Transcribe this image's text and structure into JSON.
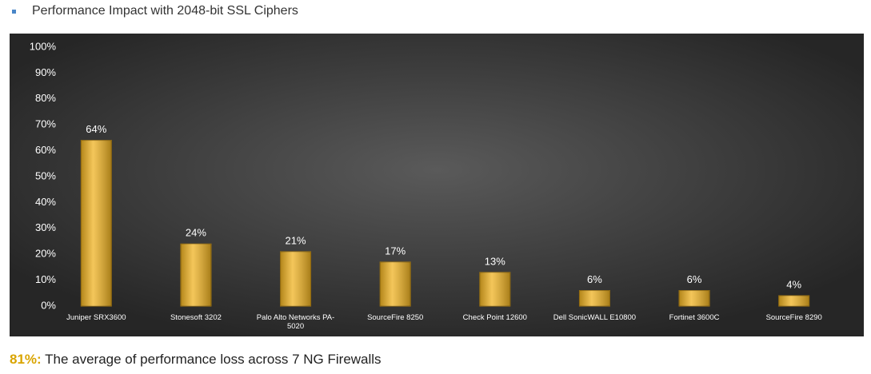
{
  "header": {
    "text": "Performance Impact with 2048-bit SSL Ciphers"
  },
  "chart_data": {
    "type": "bar",
    "categories": [
      "Juniper SRX3600",
      "Stonesoft 3202",
      "Palo Alto Networks PA-5020",
      "SourceFire 8250",
      "Check Point 12600",
      "Dell SonicWALL E10800",
      "Fortinet 3600C",
      "SourceFire 8290"
    ],
    "values": [
      64,
      24,
      21,
      17,
      13,
      6,
      6,
      4
    ],
    "value_labels": [
      "64%",
      "24%",
      "21%",
      "17%",
      "13%",
      "6%",
      "6%",
      "4%"
    ],
    "color": "#f0b323",
    "ylim": [
      0,
      100
    ],
    "yticks": [
      {
        "value": 0,
        "label": "0%"
      },
      {
        "value": 10,
        "label": "10%"
      },
      {
        "value": 20,
        "label": "20%"
      },
      {
        "value": 30,
        "label": "30%"
      },
      {
        "value": 40,
        "label": "40%"
      },
      {
        "value": 50,
        "label": "50%"
      },
      {
        "value": 60,
        "label": "60%"
      },
      {
        "value": 70,
        "label": "70%"
      },
      {
        "value": 80,
        "label": "80%"
      },
      {
        "value": 90,
        "label": "90%"
      },
      {
        "value": 100,
        "label": "100%"
      }
    ],
    "grid": false
  },
  "footer": {
    "highlight": "81%:",
    "text": "The average of performance loss across 7 NG Firewalls"
  }
}
